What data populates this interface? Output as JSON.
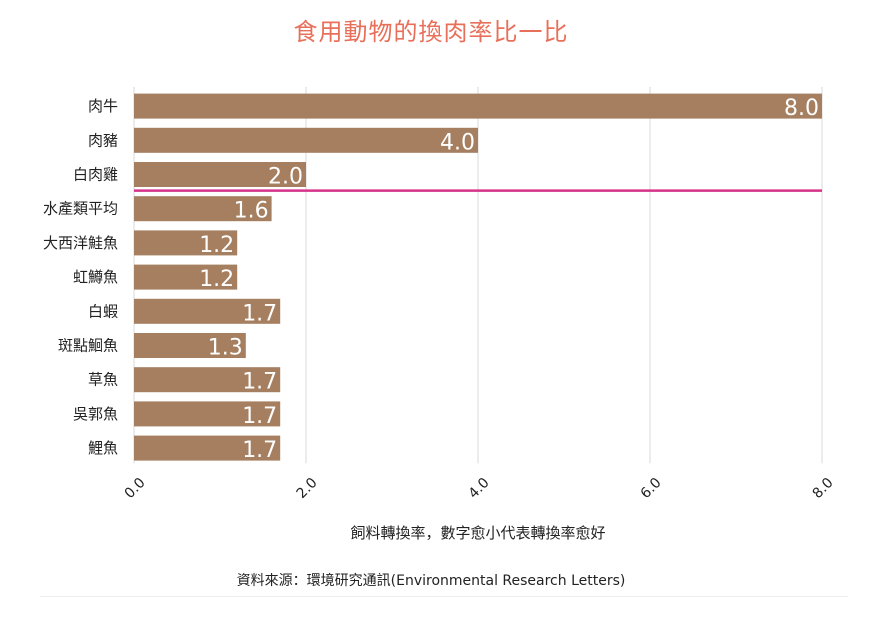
{
  "chart_data": {
    "type": "bar",
    "orientation": "horizontal",
    "title": "食用動物的換肉率比一比",
    "categories": [
      "肉牛",
      "肉豬",
      "白肉雞",
      "水產類平均",
      "大西洋鮭魚",
      "虹鱒魚",
      "白蝦",
      "斑點鮰魚",
      "草魚",
      "吳郭魚",
      "鯉魚"
    ],
    "values": [
      8.0,
      4.0,
      2.0,
      1.6,
      1.2,
      1.2,
      1.7,
      1.3,
      1.7,
      1.7,
      1.7
    ],
    "value_labels": [
      "8.0",
      "4.0",
      "2.0",
      "1.6",
      "1.2",
      "1.2",
      "1.7",
      "1.3",
      "1.7",
      "1.7",
      "1.7"
    ],
    "xticks": [
      "0.0",
      "2.0",
      "4.0",
      "6.0",
      "8.0"
    ],
    "xlim": [
      0,
      8
    ],
    "xlabel": "飼料轉換率，數字愈小代表轉換率愈好",
    "source": "資料來源：環境研究通訊(Environmental Research Letters)",
    "grid": true,
    "colors": {
      "bar": "#a57f60",
      "divider": "#d6338a",
      "grid": "#d9d9d9",
      "title": "#e8705a"
    }
  }
}
